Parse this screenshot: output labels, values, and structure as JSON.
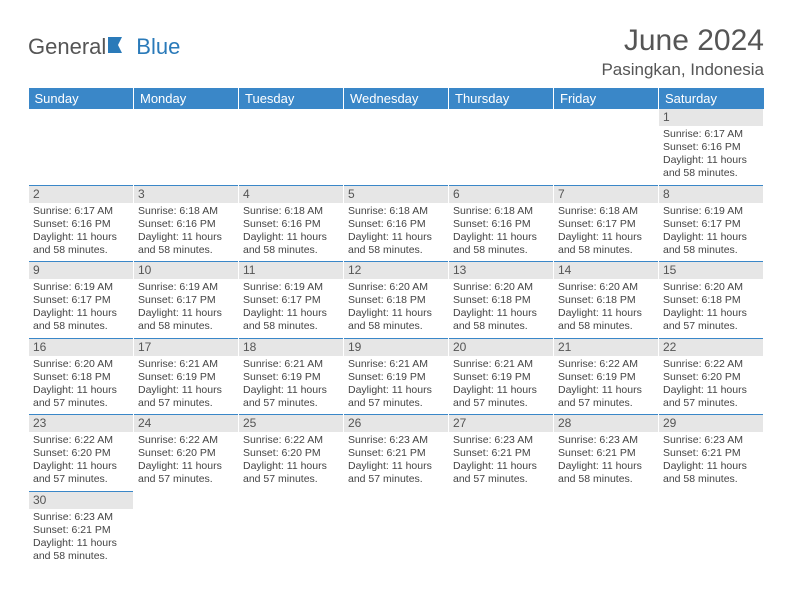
{
  "brand": {
    "part1": "General",
    "part2": "Blue"
  },
  "title": "June 2024",
  "location": "Pasingkan, Indonesia",
  "colors": {
    "header_bg": "#3a87c8",
    "header_text": "#ffffff",
    "daynum_bg": "#e6e6e6",
    "cell_border": "#3a87c8",
    "text": "#444444",
    "brand_blue": "#2a7ab9"
  },
  "weekdays": [
    "Sunday",
    "Monday",
    "Tuesday",
    "Wednesday",
    "Thursday",
    "Friday",
    "Saturday"
  ],
  "weeks": [
    [
      {
        "empty": true
      },
      {
        "empty": true
      },
      {
        "empty": true
      },
      {
        "empty": true
      },
      {
        "empty": true
      },
      {
        "empty": true
      },
      {
        "day": "1",
        "sunrise": "Sunrise: 6:17 AM",
        "sunset": "Sunset: 6:16 PM",
        "dl1": "Daylight: 11 hours",
        "dl2": "and 58 minutes."
      }
    ],
    [
      {
        "day": "2",
        "sunrise": "Sunrise: 6:17 AM",
        "sunset": "Sunset: 6:16 PM",
        "dl1": "Daylight: 11 hours",
        "dl2": "and 58 minutes."
      },
      {
        "day": "3",
        "sunrise": "Sunrise: 6:18 AM",
        "sunset": "Sunset: 6:16 PM",
        "dl1": "Daylight: 11 hours",
        "dl2": "and 58 minutes."
      },
      {
        "day": "4",
        "sunrise": "Sunrise: 6:18 AM",
        "sunset": "Sunset: 6:16 PM",
        "dl1": "Daylight: 11 hours",
        "dl2": "and 58 minutes."
      },
      {
        "day": "5",
        "sunrise": "Sunrise: 6:18 AM",
        "sunset": "Sunset: 6:16 PM",
        "dl1": "Daylight: 11 hours",
        "dl2": "and 58 minutes."
      },
      {
        "day": "6",
        "sunrise": "Sunrise: 6:18 AM",
        "sunset": "Sunset: 6:16 PM",
        "dl1": "Daylight: 11 hours",
        "dl2": "and 58 minutes."
      },
      {
        "day": "7",
        "sunrise": "Sunrise: 6:18 AM",
        "sunset": "Sunset: 6:17 PM",
        "dl1": "Daylight: 11 hours",
        "dl2": "and 58 minutes."
      },
      {
        "day": "8",
        "sunrise": "Sunrise: 6:19 AM",
        "sunset": "Sunset: 6:17 PM",
        "dl1": "Daylight: 11 hours",
        "dl2": "and 58 minutes."
      }
    ],
    [
      {
        "day": "9",
        "sunrise": "Sunrise: 6:19 AM",
        "sunset": "Sunset: 6:17 PM",
        "dl1": "Daylight: 11 hours",
        "dl2": "and 58 minutes."
      },
      {
        "day": "10",
        "sunrise": "Sunrise: 6:19 AM",
        "sunset": "Sunset: 6:17 PM",
        "dl1": "Daylight: 11 hours",
        "dl2": "and 58 minutes."
      },
      {
        "day": "11",
        "sunrise": "Sunrise: 6:19 AM",
        "sunset": "Sunset: 6:17 PM",
        "dl1": "Daylight: 11 hours",
        "dl2": "and 58 minutes."
      },
      {
        "day": "12",
        "sunrise": "Sunrise: 6:20 AM",
        "sunset": "Sunset: 6:18 PM",
        "dl1": "Daylight: 11 hours",
        "dl2": "and 58 minutes."
      },
      {
        "day": "13",
        "sunrise": "Sunrise: 6:20 AM",
        "sunset": "Sunset: 6:18 PM",
        "dl1": "Daylight: 11 hours",
        "dl2": "and 58 minutes."
      },
      {
        "day": "14",
        "sunrise": "Sunrise: 6:20 AM",
        "sunset": "Sunset: 6:18 PM",
        "dl1": "Daylight: 11 hours",
        "dl2": "and 58 minutes."
      },
      {
        "day": "15",
        "sunrise": "Sunrise: 6:20 AM",
        "sunset": "Sunset: 6:18 PM",
        "dl1": "Daylight: 11 hours",
        "dl2": "and 57 minutes."
      }
    ],
    [
      {
        "day": "16",
        "sunrise": "Sunrise: 6:20 AM",
        "sunset": "Sunset: 6:18 PM",
        "dl1": "Daylight: 11 hours",
        "dl2": "and 57 minutes."
      },
      {
        "day": "17",
        "sunrise": "Sunrise: 6:21 AM",
        "sunset": "Sunset: 6:19 PM",
        "dl1": "Daylight: 11 hours",
        "dl2": "and 57 minutes."
      },
      {
        "day": "18",
        "sunrise": "Sunrise: 6:21 AM",
        "sunset": "Sunset: 6:19 PM",
        "dl1": "Daylight: 11 hours",
        "dl2": "and 57 minutes."
      },
      {
        "day": "19",
        "sunrise": "Sunrise: 6:21 AM",
        "sunset": "Sunset: 6:19 PM",
        "dl1": "Daylight: 11 hours",
        "dl2": "and 57 minutes."
      },
      {
        "day": "20",
        "sunrise": "Sunrise: 6:21 AM",
        "sunset": "Sunset: 6:19 PM",
        "dl1": "Daylight: 11 hours",
        "dl2": "and 57 minutes."
      },
      {
        "day": "21",
        "sunrise": "Sunrise: 6:22 AM",
        "sunset": "Sunset: 6:19 PM",
        "dl1": "Daylight: 11 hours",
        "dl2": "and 57 minutes."
      },
      {
        "day": "22",
        "sunrise": "Sunrise: 6:22 AM",
        "sunset": "Sunset: 6:20 PM",
        "dl1": "Daylight: 11 hours",
        "dl2": "and 57 minutes."
      }
    ],
    [
      {
        "day": "23",
        "sunrise": "Sunrise: 6:22 AM",
        "sunset": "Sunset: 6:20 PM",
        "dl1": "Daylight: 11 hours",
        "dl2": "and 57 minutes."
      },
      {
        "day": "24",
        "sunrise": "Sunrise: 6:22 AM",
        "sunset": "Sunset: 6:20 PM",
        "dl1": "Daylight: 11 hours",
        "dl2": "and 57 minutes."
      },
      {
        "day": "25",
        "sunrise": "Sunrise: 6:22 AM",
        "sunset": "Sunset: 6:20 PM",
        "dl1": "Daylight: 11 hours",
        "dl2": "and 57 minutes."
      },
      {
        "day": "26",
        "sunrise": "Sunrise: 6:23 AM",
        "sunset": "Sunset: 6:21 PM",
        "dl1": "Daylight: 11 hours",
        "dl2": "and 57 minutes."
      },
      {
        "day": "27",
        "sunrise": "Sunrise: 6:23 AM",
        "sunset": "Sunset: 6:21 PM",
        "dl1": "Daylight: 11 hours",
        "dl2": "and 57 minutes."
      },
      {
        "day": "28",
        "sunrise": "Sunrise: 6:23 AM",
        "sunset": "Sunset: 6:21 PM",
        "dl1": "Daylight: 11 hours",
        "dl2": "and 58 minutes."
      },
      {
        "day": "29",
        "sunrise": "Sunrise: 6:23 AM",
        "sunset": "Sunset: 6:21 PM",
        "dl1": "Daylight: 11 hours",
        "dl2": "and 58 minutes."
      }
    ],
    [
      {
        "day": "30",
        "sunrise": "Sunrise: 6:23 AM",
        "sunset": "Sunset: 6:21 PM",
        "dl1": "Daylight: 11 hours",
        "dl2": "and 58 minutes."
      },
      {
        "empty": true
      },
      {
        "empty": true
      },
      {
        "empty": true
      },
      {
        "empty": true
      },
      {
        "empty": true
      },
      {
        "empty": true
      }
    ]
  ]
}
